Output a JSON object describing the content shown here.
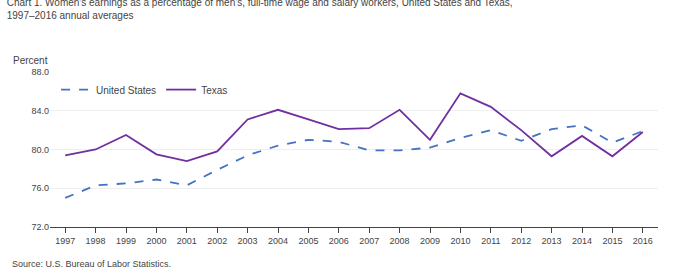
{
  "chart_data": {
    "type": "line",
    "title": "Chart 1. Women's earnings as a percentage of men's, full-time wage and salary workers, United States and Texas,",
    "subtitle": "1997–2016 annual averages",
    "ylabel": "Percent",
    "annotations": [
      "Source: U.S. Bureau of Labor Statistics."
    ],
    "x": [
      1997,
      1998,
      1999,
      2000,
      2001,
      2002,
      2003,
      2004,
      2005,
      2006,
      2007,
      2008,
      2009,
      2010,
      2011,
      2012,
      2013,
      2014,
      2015,
      2016
    ],
    "series": [
      {
        "name": "United States",
        "color": "#4472C4",
        "line_style": "dashed",
        "values": [
          75.0,
          76.3,
          76.5,
          76.9,
          76.3,
          77.9,
          79.4,
          80.4,
          81.0,
          80.8,
          79.9,
          79.9,
          80.2,
          81.2,
          82.0,
          80.9,
          82.1,
          82.5,
          80.7,
          81.9
        ]
      },
      {
        "name": "Texas",
        "color": "#7030A0",
        "line_style": "solid",
        "values": [
          79.4,
          80.0,
          81.5,
          79.5,
          78.8,
          79.8,
          83.1,
          84.1,
          83.1,
          82.1,
          82.2,
          84.1,
          81.0,
          85.8,
          84.4,
          82.0,
          79.3,
          81.4,
          79.3,
          81.8
        ]
      }
    ],
    "xlim": [
      1996.5,
      2016.5
    ],
    "xticks": [
      1997,
      1998,
      1999,
      2000,
      2001,
      2002,
      2003,
      2004,
      2005,
      2006,
      2007,
      2008,
      2009,
      2010,
      2011,
      2012,
      2013,
      2014,
      2015,
      2016
    ],
    "ylim": [
      72.0,
      88.0
    ],
    "yticks": [
      {
        "value": 72.0,
        "label": "72.0"
      },
      {
        "value": 76.0,
        "label": "76.0"
      },
      {
        "value": 80.0,
        "label": "80.0"
      },
      {
        "value": 84.0,
        "label": "84.0"
      },
      {
        "value": 88.0,
        "label": "88.0"
      }
    ],
    "grid": true,
    "legend": "upper left"
  }
}
